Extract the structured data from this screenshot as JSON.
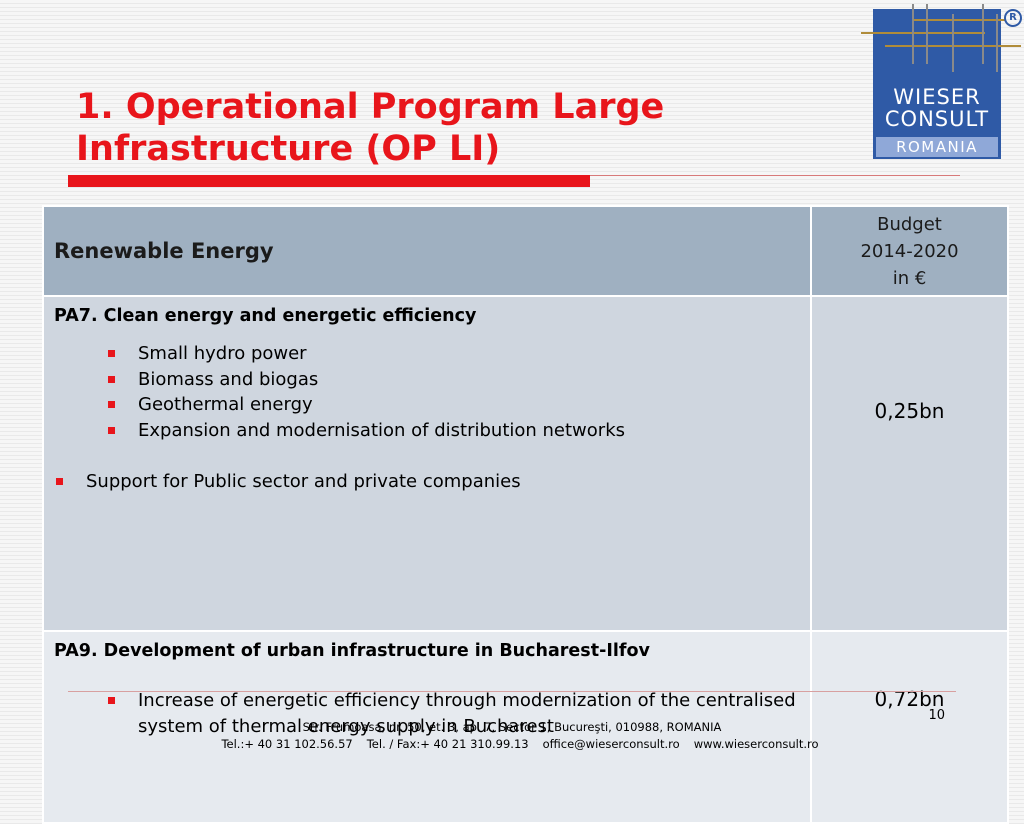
{
  "slide": {
    "title_line1": "1. Operational Program Large",
    "title_line2": "Infrastructure (OP LI)",
    "page_number": "10"
  },
  "logo": {
    "word1": "WIESER",
    "word2": "CONSULT",
    "country": "ROMANIA",
    "registered": "R",
    "brand_color": "#2f5aa6"
  },
  "table": {
    "header": {
      "col1": "Renewable Energy",
      "budget_line1": "Budget",
      "budget_line2": "2014-2020",
      "budget_line3": "in €"
    },
    "rows": [
      {
        "title": "PA7. Clean energy and energetic efficiency",
        "bullets": [
          "Small hydro power",
          "Biomass and biogas",
          "Geothermal energy",
          "Expansion and modernisation of distribution networks"
        ],
        "extra": "Support for Public sector and private companies",
        "amount": "0,25bn"
      },
      {
        "title": "PA9. Development of urban infrastructure in Bucharest-Ilfov",
        "bullets": [
          "Increase of energetic efficiency through modernization of the centralised system of thermal energy supply in Bucharest"
        ],
        "amount": "0,72bn"
      }
    ]
  },
  "footer": {
    "address": "Str. Frumoasa, nr. 50, et. 3, ap. 7, Sector 1, Bucureşti, 010988, ROMANIA",
    "phone": "Tel.:+ 40 31 102.56.57",
    "fax": "Tel. / Fax:+ 40 21 310.99.13",
    "email": "office@wieserconsult.ro",
    "website": "www.wieserconsult.ro"
  },
  "colors": {
    "accent_red": "#e8151b",
    "header_fill": "#9fb0c1",
    "row1_fill": "#cfd6df",
    "row2_fill": "#e6eaef"
  }
}
